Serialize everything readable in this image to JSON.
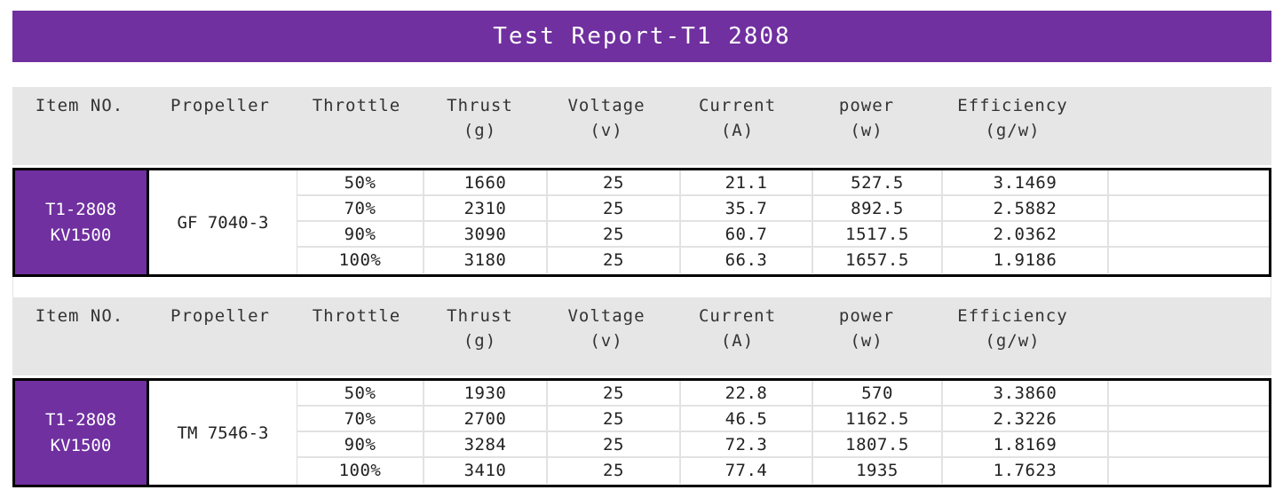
{
  "title": "Test Report-T1 2808",
  "header": [
    [
      "Item NO.",
      ""
    ],
    [
      "Propeller",
      ""
    ],
    [
      "Throttle",
      ""
    ],
    [
      "Thrust",
      "(g)"
    ],
    [
      "Voltage",
      "(v)"
    ],
    [
      "Current",
      "(A)"
    ],
    [
      "power",
      "(w)"
    ],
    [
      "Efficiency",
      "(g/w)"
    ]
  ],
  "colors": {
    "accent": "#7030A0",
    "header_bg": "#e6e6e6"
  },
  "tests": [
    {
      "item": [
        "T1-2808",
        "KV1500"
      ],
      "propeller": "GF 7040-3",
      "rows": [
        [
          "50%",
          "1660",
          "25",
          "21.1",
          "527.5",
          "3.1469"
        ],
        [
          "70%",
          "2310",
          "25",
          "35.7",
          "892.5",
          "2.5882"
        ],
        [
          "90%",
          "3090",
          "25",
          "60.7",
          "1517.5",
          "2.0362"
        ],
        [
          "100%",
          "3180",
          "25",
          "66.3",
          "1657.5",
          "1.9186"
        ]
      ]
    },
    {
      "item": [
        "T1-2808",
        "KV1500"
      ],
      "propeller": "TM 7546-3",
      "rows": [
        [
          "50%",
          "1930",
          "25",
          "22.8",
          "570",
          "3.3860"
        ],
        [
          "70%",
          "2700",
          "25",
          "46.5",
          "1162.5",
          "2.3226"
        ],
        [
          "90%",
          "3284",
          "25",
          "72.3",
          "1807.5",
          "1.8169"
        ],
        [
          "100%",
          "3410",
          "25",
          "77.4",
          "1935",
          "1.7623"
        ]
      ]
    }
  ]
}
